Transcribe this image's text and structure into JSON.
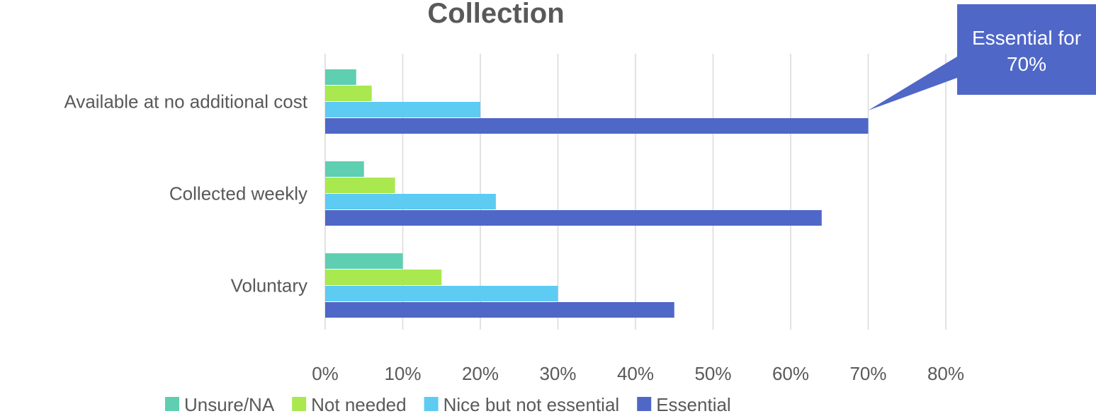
{
  "chart_data": {
    "type": "bar",
    "orientation": "horizontal",
    "title": "Collection",
    "xlabel": "",
    "ylabel": "",
    "xlim": [
      0,
      80
    ],
    "x_ticks": [
      "0%",
      "10%",
      "20%",
      "30%",
      "40%",
      "50%",
      "60%",
      "70%",
      "80%"
    ],
    "grid": true,
    "legend_position": "bottom",
    "categories": [
      "Available at no additional cost",
      "Collected weekly",
      "Voluntary"
    ],
    "series": [
      {
        "name": "Unsure/NA",
        "color": "#5ecfb1",
        "values": [
          4,
          5,
          10
        ]
      },
      {
        "name": "Not needed",
        "color": "#a9e84f",
        "values": [
          6,
          9,
          15
        ]
      },
      {
        "name": "Nice but not essential",
        "color": "#5dcbf2",
        "values": [
          20,
          22,
          30
        ]
      },
      {
        "name": "Essential",
        "color": "#4f67c7",
        "values": [
          70,
          64,
          45
        ]
      }
    ],
    "annotation": {
      "lines": [
        "Essential for",
        "70%"
      ],
      "category": "Available at no additional cost",
      "series": "Essential",
      "value": 70,
      "color": "#4f67c7"
    }
  }
}
